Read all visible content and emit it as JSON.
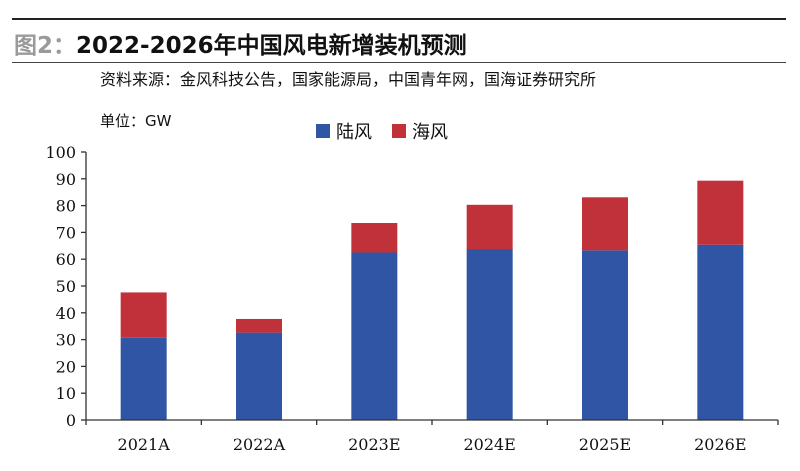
{
  "figure": {
    "label": "图2：",
    "title": "2022-2026年中国风电新增装机预测",
    "source": "资料来源：金风科技公告，国家能源局，中国青年网，国海证券研究所",
    "unit": "单位：GW"
  },
  "colors": {
    "onshore": "#2f55a4",
    "offshore": "#c0313a",
    "axis": "#333333"
  },
  "chart_data": {
    "type": "bar",
    "stacked": true,
    "categories": [
      "2021A",
      "2022A",
      "2023E",
      "2024E",
      "2025E",
      "2026E"
    ],
    "series": [
      {
        "name": "陆风",
        "values": [
          30.7,
          32.6,
          62.5,
          63.8,
          63.3,
          65.4
        ]
      },
      {
        "name": "海风",
        "values": [
          16.9,
          5.1,
          11.0,
          16.5,
          19.8,
          23.9
        ]
      }
    ],
    "ylim": [
      0,
      100
    ],
    "yticks": [
      0,
      10,
      20,
      30,
      40,
      50,
      60,
      70,
      80,
      90,
      100
    ],
    "legend_position": "top",
    "grid": false
  }
}
